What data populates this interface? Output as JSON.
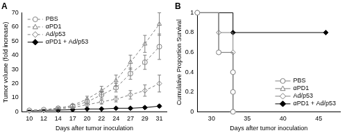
{
  "chart_data": [
    {
      "type": "line",
      "title": "A",
      "x_label": "Days after tumor inoculation",
      "y_label": "Tumor volume (fold increase)",
      "categories": [
        "10",
        "12",
        "14",
        "17",
        "20",
        "22",
        "24",
        "27",
        "29",
        "31"
      ],
      "ylim": [
        0,
        70
      ],
      "yticks": [
        0,
        10,
        20,
        30,
        40,
        50,
        60,
        70
      ],
      "grid": false,
      "legend": "upper left",
      "series": [
        {
          "name": "PBS",
          "color": "#7f7f7f",
          "marker": "circle-open",
          "line_style": "dashed",
          "values": [
            1,
            1.5,
            2.5,
            4,
            7,
            12,
            17,
            27,
            35,
            46
          ],
          "error": [
            0.2,
            0.3,
            0.6,
            1,
            1.5,
            2.5,
            3,
            4,
            5,
            9
          ]
        },
        {
          "name": "αPD1",
          "color": "#7f7f7f",
          "marker": "triangle-open",
          "line_style": "dashed",
          "values": [
            1,
            1.5,
            2.5,
            4.5,
            9,
            15,
            22,
            35,
            48,
            62
          ],
          "error": [
            0.2,
            0.3,
            0.6,
            1,
            2,
            3,
            4,
            5,
            6,
            8
          ]
        },
        {
          "name": "Ad/p53",
          "color": "#7f7f7f",
          "marker": "diamond-open",
          "line_style": "dashed",
          "values": [
            1,
            1.2,
            2,
            3,
            5,
            7,
            9,
            12,
            15,
            20
          ],
          "error": [
            0.2,
            0.3,
            0.4,
            0.6,
            1,
            1.5,
            2,
            3,
            4,
            6
          ]
        },
        {
          "name": "αPD1 + Ad/p53",
          "color": "#000000",
          "marker": "diamond",
          "line_style": "solid",
          "values": [
            0.8,
            1,
            1.2,
            1.5,
            2,
            2,
            2.5,
            2.5,
            3,
            4
          ],
          "error": [
            0.1,
            0.2,
            0.2,
            0.3,
            0.4,
            0.5,
            0.5,
            0.6,
            0.6,
            0.8
          ]
        }
      ]
    },
    {
      "type": "step",
      "title": "B",
      "x_label": "Days after tumor inoculation",
      "y_label": "Cumulative Proportion Survival",
      "xlim": [
        28,
        48
      ],
      "xticks": [
        30,
        35,
        40,
        45
      ],
      "ylim": [
        0,
        1
      ],
      "yticks": [
        0,
        0.2,
        0.4,
        0.6,
        0.8,
        1
      ],
      "grid": false,
      "legend": "lower right",
      "series": [
        {
          "name": "PBS",
          "color": "#7f7f7f",
          "marker": "circle-open",
          "line_style": "solid",
          "x": [
            28,
            31,
            33,
            33,
            33
          ],
          "values": [
            1,
            0.6,
            0.4,
            0.2,
            0
          ]
        },
        {
          "name": "αPD1",
          "color": "#7f7f7f",
          "marker": "triangle-open",
          "line_style": "solid",
          "x": [
            28,
            31,
            33,
            33,
            33
          ],
          "values": [
            1,
            0.6,
            0.4,
            0.2,
            0
          ]
        },
        {
          "name": "Ad/p53",
          "color": "#7f7f7f",
          "marker": "diamond-open",
          "line_style": "solid",
          "x": [
            28,
            31,
            33,
            33,
            33
          ],
          "values": [
            1,
            0.8,
            0.6,
            0.4,
            0
          ]
        },
        {
          "name": "αPD1 + Ad/p53",
          "color": "#000000",
          "marker": "diamond",
          "line_style": "solid",
          "x": [
            28,
            33,
            46
          ],
          "values": [
            1,
            0.8,
            0.8
          ]
        }
      ]
    }
  ]
}
